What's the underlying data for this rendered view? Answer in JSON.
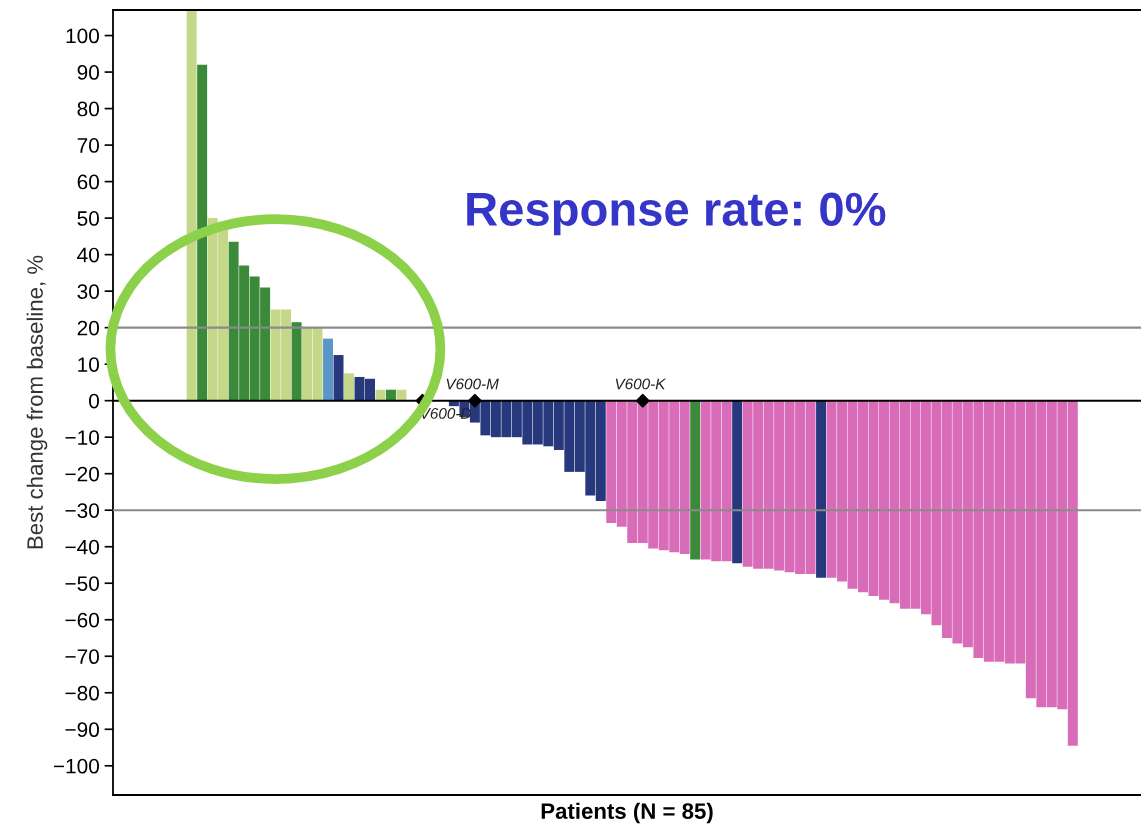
{
  "chart_data": {
    "type": "bar",
    "xlabel": "Patients (N = 85)",
    "ylabel": "Best change from baseline, %",
    "categories": [
      null,
      null,
      null,
      null,
      null,
      null,
      null,
      null,
      null,
      null,
      null,
      null,
      null,
      null,
      null,
      null,
      null,
      null,
      null,
      null,
      null,
      null,
      null,
      null,
      null,
      null,
      null,
      null,
      null,
      null,
      null,
      null,
      null,
      null,
      null,
      null,
      null,
      null,
      null,
      null,
      null,
      null,
      null,
      null,
      null,
      null,
      null,
      null,
      null,
      null,
      null,
      null,
      null,
      null,
      null,
      null,
      null,
      null,
      null,
      null,
      null,
      null,
      null,
      null,
      null,
      null,
      null,
      null,
      null,
      null,
      null,
      null,
      null,
      null,
      null,
      null,
      null,
      null,
      null,
      null,
      null,
      null,
      null,
      null,
      null,
      null,
      null,
      null,
      null,
      null,
      null,
      null,
      null,
      null,
      null,
      null,
      null,
      null
    ],
    "series": [
      {
        "values": [
          null,
          null,
          null,
          null,
          null,
          null,
          null,
          107,
          92,
          50,
          49,
          43.5,
          37,
          34,
          31,
          25,
          25,
          21.5,
          20,
          20,
          17,
          12.5,
          7.5,
          6.5,
          6,
          3,
          3,
          3,
          0,
          0,
          0,
          0,
          -1.5,
          -4.5,
          -6,
          -9.5,
          -10,
          -10,
          -10,
          -12,
          -12,
          -12.5,
          -13.5,
          -19.5,
          -19.5,
          -26,
          -27.5,
          -33.5,
          -34.5,
          -39,
          -39,
          -40.5,
          -41,
          -41.5,
          -42,
          -43.5,
          -43.5,
          -44,
          -44,
          -44.5,
          -45.5,
          -46,
          -46,
          -46.5,
          -47,
          -47.5,
          -47.5,
          -48.5,
          -48.5,
          -49.5,
          -51.5,
          -52.5,
          -53.5,
          -54.5,
          -55.5,
          -57,
          -57,
          -58.5,
          -61.5,
          -65,
          -66.5,
          -67.5,
          -70.5,
          -71.5,
          -71.5,
          -72,
          -72,
          -81.5,
          -84,
          -84,
          -84.5,
          -94.5,
          null,
          null,
          null,
          null,
          null,
          null
        ],
        "colors": [
          null,
          null,
          null,
          null,
          null,
          null,
          null,
          "#c5d88a",
          "#3a8a3a",
          "#c5d88a",
          "#c5d88a",
          "#3a8a3a",
          "#3a8a3a",
          "#3a8a3a",
          "#3a8a3a",
          "#c5d88a",
          "#c5d88a",
          "#3a8a3a",
          "#c5d88a",
          "#c5d88a",
          "#5a96c8",
          "#27387d",
          "#c5d88a",
          "#27387d",
          "#27387d",
          "#c5d88a",
          "#3a8a3a",
          "#c5d88a",
          "#c5d88a",
          "#c5d88a",
          "#c5d88a",
          "#c5d88a",
          "#27387d",
          "#27387d",
          "#27387d",
          "#27387d",
          "#27387d",
          "#27387d",
          "#27387d",
          "#27387d",
          "#27387d",
          "#27387d",
          "#27387d",
          "#27387d",
          "#27387d",
          "#27387d",
          "#27387d",
          "#d86cb8",
          "#d86cb8",
          "#d86cb8",
          "#d86cb8",
          "#d86cb8",
          "#d86cb8",
          "#d86cb8",
          "#d86cb8",
          "#3a8a3a",
          "#d86cb8",
          "#d86cb8",
          "#d86cb8",
          "#27387d",
          "#d86cb8",
          "#d86cb8",
          "#d86cb8",
          "#d86cb8",
          "#d86cb8",
          "#d86cb8",
          "#d86cb8",
          "#27387d",
          "#d86cb8",
          "#d86cb8",
          "#d86cb8",
          "#d86cb8",
          "#d86cb8",
          "#d86cb8",
          "#d86cb8",
          "#d86cb8",
          "#d86cb8",
          "#d86cb8",
          "#d86cb8",
          "#d86cb8",
          "#d86cb8",
          "#d86cb8",
          "#d86cb8",
          "#d86cb8",
          "#d86cb8",
          "#d86cb8",
          "#d86cb8",
          "#d86cb8",
          "#d86cb8",
          "#d86cb8",
          "#d86cb8",
          "#d86cb8",
          null,
          null,
          null,
          null,
          null,
          null
        ]
      },
      {
        "type": "scatter",
        "marker": "diamond",
        "color": "#000000",
        "values": [
          null,
          null,
          null,
          null,
          null,
          null,
          null,
          null,
          null,
          null,
          null,
          null,
          null,
          null,
          null,
          null,
          null,
          null,
          null,
          null,
          null,
          null,
          null,
          null,
          null,
          null,
          null,
          null,
          null,
          0,
          null,
          null,
          null,
          null,
          0,
          null,
          null,
          null,
          null,
          null,
          null,
          null,
          null,
          null,
          null,
          null,
          null,
          null,
          null,
          null,
          0,
          null,
          null,
          null,
          null,
          null,
          null,
          null,
          null,
          null,
          null,
          null,
          null,
          null,
          null,
          null,
          null,
          null,
          null,
          null,
          null,
          null,
          null,
          null,
          null,
          null,
          null,
          null,
          null,
          null,
          null,
          null,
          null,
          null,
          null,
          null,
          null,
          null,
          null,
          null,
          null,
          null,
          null,
          null,
          null,
          null,
          null,
          null
        ],
        "value_labels": [
          null,
          null,
          null,
          null,
          null,
          null,
          null,
          null,
          null,
          null,
          null,
          null,
          null,
          null,
          null,
          null,
          null,
          null,
          null,
          null,
          null,
          null,
          null,
          null,
          null,
          null,
          null,
          null,
          null,
          "V600-D",
          null,
          null,
          null,
          null,
          "V600-M",
          null,
          null,
          null,
          null,
          null,
          null,
          null,
          null,
          null,
          null,
          null,
          null,
          null,
          null,
          null,
          "V600-K",
          null,
          null,
          null,
          null,
          null,
          null,
          null,
          null,
          null,
          null,
          null,
          null,
          null,
          null,
          null,
          null,
          null,
          null,
          null,
          null,
          null,
          null,
          null,
          null,
          null,
          null,
          null,
          null,
          null,
          null,
          null,
          null,
          null,
          null,
          null,
          null,
          null,
          null,
          null,
          null,
          null,
          null,
          null,
          null,
          null,
          null,
          null
        ]
      }
    ],
    "ylim": [
      -108,
      107
    ],
    "yticks": [
      -100,
      -90,
      -80,
      -70,
      -60,
      -50,
      -40,
      -30,
      -20,
      -10,
      0,
      10,
      20,
      30,
      40,
      50,
      60,
      70,
      80,
      90,
      100
    ],
    "ref_lines": [
      {
        "axis": "y",
        "value": 20,
        "color": "#8a8a8a"
      },
      {
        "axis": "y",
        "value": -30,
        "color": "#8a8a8a"
      },
      {
        "axis": "y",
        "value": 0,
        "color": "#000000"
      }
    ],
    "annotations": [
      "Response rate: 0%"
    ],
    "grid": false,
    "legend": false
  }
}
